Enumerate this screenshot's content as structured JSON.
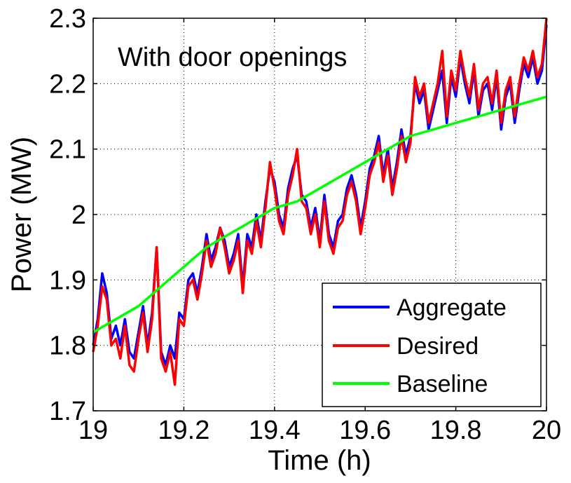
{
  "chart_data": {
    "type": "line",
    "title": "",
    "annotation": "With door openings",
    "xlabel": "Time (h)",
    "ylabel": "Power (MW)",
    "xlim": [
      19,
      20
    ],
    "ylim": [
      1.7,
      2.3
    ],
    "xticks": [
      19,
      19.2,
      19.4,
      19.6,
      19.8,
      20
    ],
    "xtick_labels": [
      "19",
      "19.2",
      "19.4",
      "19.6",
      "19.8",
      "20"
    ],
    "yticks": [
      1.7,
      1.8,
      1.9,
      2.0,
      2.1,
      2.2,
      2.3
    ],
    "ytick_labels": [
      "1.7",
      "1.8",
      "1.9",
      "2",
      "2.1",
      "2.2",
      "2.3"
    ],
    "grid": true,
    "legend_position": "bottom-right",
    "series": [
      {
        "name": "Aggregate",
        "color": "#0000ff",
        "x": [
          19.0,
          19.01,
          19.02,
          19.03,
          19.04,
          19.05,
          19.06,
          19.07,
          19.08,
          19.09,
          19.1,
          19.11,
          19.12,
          19.13,
          19.14,
          19.15,
          19.16,
          19.17,
          19.18,
          19.19,
          19.2,
          19.21,
          19.22,
          19.23,
          19.24,
          19.25,
          19.26,
          19.27,
          19.28,
          19.29,
          19.3,
          19.31,
          19.32,
          19.33,
          19.34,
          19.35,
          19.36,
          19.37,
          19.38,
          19.39,
          19.4,
          19.41,
          19.42,
          19.43,
          19.44,
          19.45,
          19.46,
          19.47,
          19.48,
          19.49,
          19.5,
          19.51,
          19.52,
          19.53,
          19.54,
          19.55,
          19.56,
          19.57,
          19.58,
          19.59,
          19.6,
          19.61,
          19.62,
          19.63,
          19.64,
          19.65,
          19.66,
          19.67,
          19.68,
          19.69,
          19.7,
          19.71,
          19.72,
          19.73,
          19.74,
          19.75,
          19.76,
          19.77,
          19.78,
          19.79,
          19.8,
          19.81,
          19.82,
          19.83,
          19.84,
          19.85,
          19.86,
          19.87,
          19.88,
          19.89,
          19.9,
          19.91,
          19.92,
          19.93,
          19.94,
          19.95,
          19.96,
          19.97,
          19.98,
          19.99,
          20.0
        ],
        "y": [
          1.8,
          1.84,
          1.91,
          1.88,
          1.81,
          1.83,
          1.8,
          1.84,
          1.79,
          1.78,
          1.82,
          1.86,
          1.8,
          1.85,
          1.95,
          1.79,
          1.77,
          1.8,
          1.78,
          1.85,
          1.84,
          1.9,
          1.91,
          1.88,
          1.92,
          1.97,
          1.93,
          1.95,
          1.98,
          1.96,
          1.92,
          1.94,
          1.97,
          1.89,
          1.97,
          1.95,
          2.0,
          1.96,
          2.02,
          2.07,
          2.05,
          2.0,
          1.98,
          2.04,
          2.07,
          2.09,
          2.03,
          2.02,
          1.98,
          2.01,
          1.96,
          2.03,
          1.97,
          1.95,
          1.99,
          2.0,
          2.04,
          2.06,
          2.03,
          1.98,
          2.02,
          2.07,
          2.09,
          2.12,
          2.06,
          2.1,
          2.04,
          2.08,
          2.13,
          2.09,
          2.12,
          2.2,
          2.17,
          2.19,
          2.13,
          2.16,
          2.19,
          2.22,
          2.14,
          2.21,
          2.18,
          2.24,
          2.2,
          2.17,
          2.22,
          2.15,
          2.19,
          2.2,
          2.16,
          2.21,
          2.13,
          2.18,
          2.2,
          2.14,
          2.19,
          2.23,
          2.21,
          2.24,
          2.2,
          2.22,
          2.29
        ]
      },
      {
        "name": "Desired",
        "color": "#ff0000",
        "x": [
          19.0,
          19.01,
          19.02,
          19.03,
          19.04,
          19.05,
          19.06,
          19.07,
          19.08,
          19.09,
          19.1,
          19.11,
          19.12,
          19.13,
          19.14,
          19.15,
          19.16,
          19.17,
          19.18,
          19.19,
          19.2,
          19.21,
          19.22,
          19.23,
          19.24,
          19.25,
          19.26,
          19.27,
          19.28,
          19.29,
          19.3,
          19.31,
          19.32,
          19.33,
          19.34,
          19.35,
          19.36,
          19.37,
          19.38,
          19.39,
          19.4,
          19.41,
          19.42,
          19.43,
          19.44,
          19.45,
          19.46,
          19.47,
          19.48,
          19.49,
          19.5,
          19.51,
          19.52,
          19.53,
          19.54,
          19.55,
          19.56,
          19.57,
          19.58,
          19.59,
          19.6,
          19.61,
          19.62,
          19.63,
          19.64,
          19.65,
          19.66,
          19.67,
          19.68,
          19.69,
          19.7,
          19.71,
          19.72,
          19.73,
          19.74,
          19.75,
          19.76,
          19.77,
          19.78,
          19.79,
          19.8,
          19.81,
          19.82,
          19.83,
          19.84,
          19.85,
          19.86,
          19.87,
          19.88,
          19.89,
          19.9,
          19.91,
          19.92,
          19.93,
          19.94,
          19.95,
          19.96,
          19.97,
          19.98,
          19.99,
          20.0
        ],
        "y": [
          1.79,
          1.83,
          1.89,
          1.87,
          1.8,
          1.81,
          1.78,
          1.83,
          1.77,
          1.76,
          1.81,
          1.85,
          1.79,
          1.84,
          1.95,
          1.78,
          1.76,
          1.79,
          1.74,
          1.84,
          1.83,
          1.89,
          1.9,
          1.87,
          1.91,
          1.96,
          1.92,
          1.94,
          1.98,
          1.95,
          1.91,
          1.93,
          1.96,
          1.88,
          1.96,
          1.94,
          1.99,
          1.95,
          2.01,
          2.08,
          2.04,
          1.99,
          1.97,
          2.03,
          2.06,
          2.1,
          2.02,
          2.01,
          1.97,
          2.0,
          1.95,
          2.02,
          1.96,
          1.94,
          1.98,
          1.99,
          2.03,
          2.05,
          2.02,
          1.97,
          2.01,
          2.06,
          2.08,
          2.11,
          2.05,
          2.09,
          2.03,
          2.07,
          2.12,
          2.08,
          2.11,
          2.21,
          2.18,
          2.2,
          2.14,
          2.17,
          2.2,
          2.25,
          2.15,
          2.22,
          2.19,
          2.25,
          2.21,
          2.18,
          2.23,
          2.16,
          2.2,
          2.21,
          2.17,
          2.22,
          2.14,
          2.19,
          2.21,
          2.15,
          2.2,
          2.24,
          2.22,
          2.25,
          2.21,
          2.23,
          2.3
        ]
      },
      {
        "name": "Baseline",
        "color": "#00ff00",
        "x": [
          19.0,
          19.05,
          19.1,
          19.15,
          19.2,
          19.25,
          19.3,
          19.35,
          19.4,
          19.45,
          19.5,
          19.55,
          19.6,
          19.65,
          19.7,
          19.75,
          19.8,
          19.85,
          19.9,
          19.95,
          20.0
        ],
        "y": [
          1.82,
          1.84,
          1.86,
          1.89,
          1.92,
          1.95,
          1.97,
          1.99,
          2.01,
          2.02,
          2.04,
          2.06,
          2.08,
          2.1,
          2.12,
          2.13,
          2.14,
          2.15,
          2.16,
          2.17,
          2.18
        ]
      }
    ]
  }
}
